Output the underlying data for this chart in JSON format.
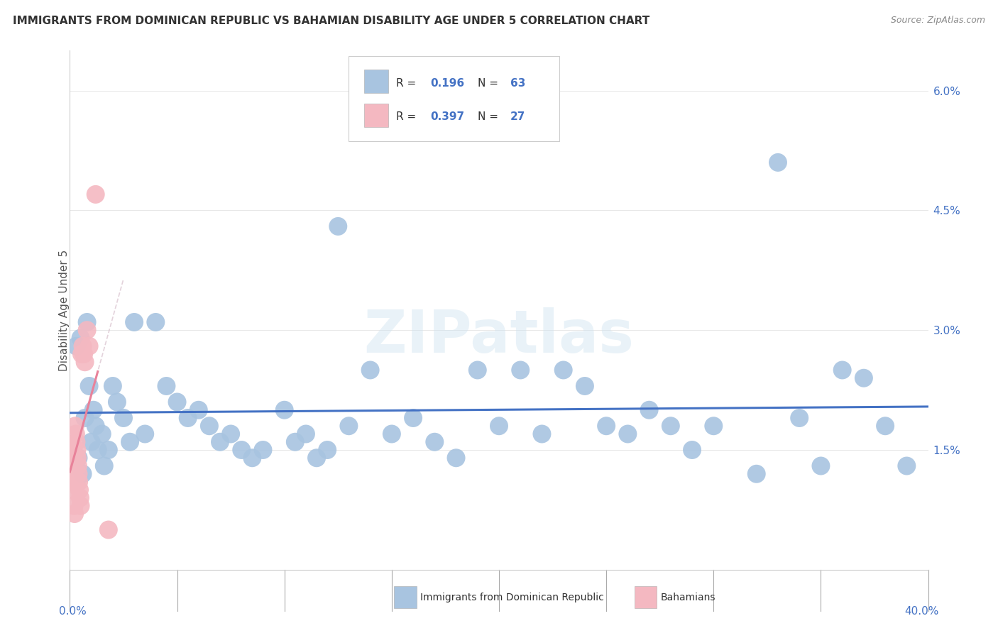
{
  "title": "IMMIGRANTS FROM DOMINICAN REPUBLIC VS BAHAMIAN DISABILITY AGE UNDER 5 CORRELATION CHART",
  "source": "Source: ZipAtlas.com",
  "ylabel": "Disability Age Under 5",
  "xlim": [
    0.0,
    40.0
  ],
  "ylim": [
    0.0,
    6.5
  ],
  "watermark": "ZIPatlas",
  "right_yticks": [
    0.0,
    1.5,
    3.0,
    4.5,
    6.0
  ],
  "right_ytick_labels": [
    "",
    "1.5%",
    "3.0%",
    "4.5%",
    "6.0%"
  ],
  "blue_color": "#a8c4e0",
  "blue_line_color": "#4472c4",
  "pink_color": "#f4b8c1",
  "pink_line_color": "#e8829a",
  "pink_dash_color": "#d8c0cc",
  "blue_R": 0.196,
  "blue_N": 63,
  "pink_R": 0.397,
  "pink_N": 27,
  "blue_x": [
    0.3,
    0.5,
    0.7,
    0.8,
    0.9,
    1.0,
    1.1,
    1.2,
    1.5,
    1.8,
    2.0,
    2.2,
    2.5,
    3.0,
    3.5,
    4.0,
    4.5,
    5.0,
    5.5,
    6.0,
    6.5,
    7.0,
    7.5,
    8.0,
    9.0,
    10.0,
    10.5,
    11.0,
    12.0,
    12.5,
    13.0,
    14.0,
    15.0,
    16.0,
    17.0,
    18.0,
    19.0,
    20.0,
    21.0,
    22.0,
    23.0,
    24.0,
    25.0,
    26.0,
    27.0,
    28.0,
    29.0,
    30.0,
    32.0,
    34.0,
    35.0,
    36.0,
    38.0,
    0.4,
    0.6,
    1.3,
    1.6,
    2.8,
    8.5,
    11.5,
    33.0,
    37.0,
    39.0
  ],
  "blue_y": [
    2.8,
    2.9,
    1.9,
    3.1,
    2.3,
    1.6,
    2.0,
    1.8,
    1.7,
    1.5,
    2.3,
    2.1,
    1.9,
    3.1,
    1.7,
    3.1,
    2.3,
    2.1,
    1.9,
    2.0,
    1.8,
    1.6,
    1.7,
    1.5,
    1.5,
    2.0,
    1.6,
    1.7,
    1.5,
    4.3,
    1.8,
    2.5,
    1.7,
    1.9,
    1.6,
    1.4,
    2.5,
    1.8,
    2.5,
    1.7,
    2.5,
    2.3,
    1.8,
    1.7,
    2.0,
    1.8,
    1.5,
    1.8,
    1.2,
    1.9,
    1.3,
    2.5,
    1.8,
    1.4,
    1.2,
    1.5,
    1.3,
    1.6,
    1.4,
    1.4,
    5.1,
    2.4,
    1.3
  ],
  "pink_x": [
    0.05,
    0.08,
    0.1,
    0.12,
    0.15,
    0.18,
    0.2,
    0.22,
    0.25,
    0.28,
    0.3,
    0.33,
    0.35,
    0.38,
    0.4,
    0.42,
    0.45,
    0.48,
    0.5,
    0.55,
    0.6,
    0.65,
    0.7,
    0.8,
    0.9,
    1.2,
    1.8
  ],
  "pink_y": [
    1.5,
    1.4,
    1.3,
    1.2,
    1.1,
    1.0,
    0.8,
    0.7,
    1.8,
    1.7,
    1.6,
    1.5,
    1.4,
    1.3,
    1.2,
    1.1,
    1.0,
    0.9,
    0.8,
    2.7,
    2.8,
    2.7,
    2.6,
    3.0,
    2.8,
    4.7,
    0.5
  ]
}
